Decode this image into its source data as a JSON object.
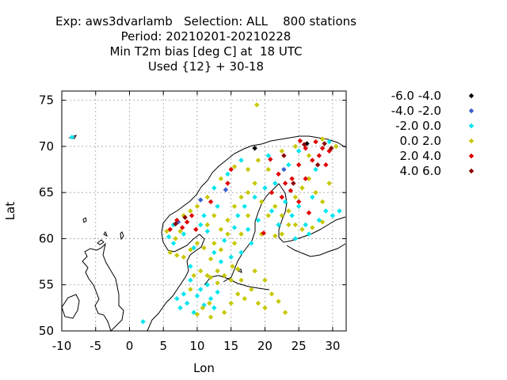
{
  "chart_data": {
    "type": "scatter",
    "title_lines": [
      "Exp: aws3dvarlamb   Selection: ALL    800 stations",
      "Period: 20210201-20210228",
      "Min T2m bias [deg C] at  18 UTC",
      "Used {12} + 30-18"
    ],
    "xlabel": "Lon",
    "ylabel": "Lat",
    "xlim": [
      -10,
      32
    ],
    "ylim": [
      50,
      76
    ],
    "xticks": [
      -10,
      -5,
      0,
      5,
      10,
      15,
      20,
      25,
      30
    ],
    "yticks": [
      50,
      55,
      60,
      65,
      70,
      75
    ],
    "grid": true,
    "legend_position": "right",
    "series": [
      {
        "name": "-6.0 -4.0",
        "color": "#000000",
        "points": [
          [
            18.5,
            69.8
          ],
          [
            26.2,
            70.3
          ]
        ]
      },
      {
        "name": "-4.0 -2.0",
        "color": "#3a5fcd",
        "points": [
          [
            7.2,
            61.8
          ],
          [
            10.5,
            64.2
          ],
          [
            14.2,
            65.3
          ],
          [
            22.8,
            67.5
          ]
        ]
      },
      {
        "name": "-2.0 0.0",
        "color": "#00e5ee",
        "points": [
          [
            -8.5,
            71.0
          ],
          [
            2.0,
            51.0
          ],
          [
            5.8,
            60.2
          ],
          [
            6.5,
            61.5
          ],
          [
            7.0,
            53.5
          ],
          [
            7.5,
            52.5
          ],
          [
            8.0,
            54.0
          ],
          [
            8.5,
            53.0
          ],
          [
            9.0,
            55.5
          ],
          [
            9.5,
            52.0
          ],
          [
            10.0,
            53.8
          ],
          [
            10.5,
            54.5
          ],
          [
            11.0,
            52.8
          ],
          [
            11.5,
            55.0
          ],
          [
            12.0,
            53.5
          ],
          [
            12.5,
            52.5
          ],
          [
            13.0,
            54.2
          ],
          [
            6.5,
            59.5
          ],
          [
            8.0,
            60.5
          ],
          [
            9.5,
            59.0
          ],
          [
            10.5,
            61.5
          ],
          [
            11.5,
            60.8
          ],
          [
            12.5,
            58.5
          ],
          [
            13.5,
            57.5
          ],
          [
            14.0,
            59.8
          ],
          [
            15.0,
            58.0
          ],
          [
            15.5,
            61.2
          ],
          [
            16.0,
            62.5
          ],
          [
            17.0,
            63.5
          ],
          [
            17.5,
            61.0
          ],
          [
            18.0,
            59.5
          ],
          [
            18.5,
            64.5
          ],
          [
            19.0,
            62.0
          ],
          [
            20.0,
            65.5
          ],
          [
            21.0,
            63.0
          ],
          [
            22.0,
            61.5
          ],
          [
            23.0,
            64.0
          ],
          [
            24.0,
            62.5
          ],
          [
            25.0,
            63.5
          ],
          [
            26.0,
            61.5
          ],
          [
            27.0,
            64.5
          ],
          [
            28.0,
            62.0
          ],
          [
            29.0,
            63.0
          ],
          [
            30.0,
            62.5
          ],
          [
            31.0,
            63.0
          ],
          [
            26.5,
            60.5
          ],
          [
            24.5,
            60.0
          ],
          [
            27.5,
            67.5
          ],
          [
            23.5,
            68.0
          ],
          [
            20.5,
            69.0
          ],
          [
            16.5,
            68.5
          ],
          [
            14.5,
            67.0
          ],
          [
            12.5,
            65.5
          ],
          [
            25.0,
            69.5
          ],
          [
            29.5,
            70.5
          ],
          [
            11.0,
            62.5
          ],
          [
            13.0,
            63.5
          ],
          [
            21.5,
            66.0
          ],
          [
            16.5,
            58.5
          ],
          [
            9.0,
            57.0
          ]
        ]
      },
      {
        "name": "0.0 2.0",
        "color": "#c8c800",
        "points": [
          [
            18.8,
            74.5
          ],
          [
            5.5,
            60.8
          ],
          [
            6.0,
            58.5
          ],
          [
            7.0,
            58.2
          ],
          [
            8.0,
            58.0
          ],
          [
            9.0,
            58.8
          ],
          [
            10.0,
            59.5
          ],
          [
            11.0,
            59.0
          ],
          [
            12.0,
            57.8
          ],
          [
            13.0,
            56.5
          ],
          [
            14.0,
            56.0
          ],
          [
            15.0,
            55.5
          ],
          [
            16.0,
            54.0
          ],
          [
            17.0,
            53.5
          ],
          [
            18.0,
            54.5
          ],
          [
            19.0,
            53.0
          ],
          [
            20.0,
            52.5
          ],
          [
            21.0,
            54.0
          ],
          [
            22.0,
            53.2
          ],
          [
            23.0,
            52.0
          ],
          [
            9.5,
            56.0
          ],
          [
            10.5,
            56.5
          ],
          [
            11.5,
            56.0
          ],
          [
            12.0,
            55.8
          ],
          [
            10.0,
            51.8
          ],
          [
            12.0,
            51.5
          ],
          [
            14.0,
            52.0
          ],
          [
            15.0,
            53.0
          ],
          [
            16.5,
            55.5
          ],
          [
            18.5,
            56.5
          ],
          [
            20.0,
            55.5
          ],
          [
            11.5,
            61.5
          ],
          [
            12.5,
            62.5
          ],
          [
            13.5,
            61.0
          ],
          [
            14.5,
            62.0
          ],
          [
            15.5,
            63.5
          ],
          [
            16.5,
            64.5
          ],
          [
            17.5,
            65.0
          ],
          [
            18.5,
            66.0
          ],
          [
            19.5,
            64.0
          ],
          [
            20.5,
            62.5
          ],
          [
            21.5,
            63.5
          ],
          [
            22.5,
            62.5
          ],
          [
            23.5,
            63.0
          ],
          [
            24.5,
            64.5
          ],
          [
            25.5,
            65.5
          ],
          [
            26.5,
            66.5
          ],
          [
            27.5,
            65.0
          ],
          [
            28.5,
            64.0
          ],
          [
            29.5,
            66.0
          ],
          [
            24.5,
            61.5
          ],
          [
            25.5,
            61.0
          ],
          [
            27.0,
            61.2
          ],
          [
            28.5,
            61.8
          ],
          [
            13.5,
            58.8
          ],
          [
            15.5,
            59.5
          ],
          [
            16.5,
            60.5
          ],
          [
            17.5,
            62.5
          ],
          [
            19.5,
            60.5
          ],
          [
            21.5,
            60.3
          ],
          [
            22.5,
            60.5
          ],
          [
            23.5,
            61.5
          ],
          [
            20.5,
            67.5
          ],
          [
            22.5,
            69.5
          ],
          [
            24.5,
            70.0
          ],
          [
            26.5,
            69.0
          ],
          [
            28.5,
            70.8
          ],
          [
            30.5,
            70.0
          ],
          [
            19.0,
            68.5
          ],
          [
            17.5,
            67.5
          ],
          [
            15.5,
            67.8
          ],
          [
            13.5,
            66.5
          ],
          [
            11.5,
            64.5
          ],
          [
            10.0,
            63.5
          ],
          [
            9.0,
            63.0
          ],
          [
            8.0,
            62.5
          ],
          [
            7.5,
            60.8
          ],
          [
            6.8,
            60.0
          ],
          [
            12.5,
            59.5
          ],
          [
            14.5,
            60.5
          ],
          [
            15.2,
            57.0
          ],
          [
            16.0,
            56.7
          ],
          [
            13.0,
            55.2
          ],
          [
            11.8,
            53.0
          ],
          [
            9.0,
            54.5
          ],
          [
            10.8,
            52.5
          ]
        ]
      },
      {
        "name": "2.0 4.0",
        "color": "#e00000",
        "points": [
          [
            6.0,
            61.0
          ],
          [
            7.0,
            62.0
          ],
          [
            7.8,
            61.2
          ],
          [
            8.5,
            61.8
          ],
          [
            9.2,
            62.5
          ],
          [
            9.8,
            61.0
          ],
          [
            12.0,
            64.0
          ],
          [
            14.5,
            66.0
          ],
          [
            15.0,
            67.5
          ],
          [
            20.8,
            68.6
          ],
          [
            22.0,
            67.0
          ],
          [
            23.0,
            66.0
          ],
          [
            24.0,
            66.5
          ],
          [
            25.0,
            68.0
          ],
          [
            26.0,
            66.5
          ],
          [
            27.0,
            68.5
          ],
          [
            28.0,
            69.0
          ],
          [
            29.0,
            68.0
          ],
          [
            22.5,
            64.5
          ],
          [
            25.0,
            64.0
          ],
          [
            26.5,
            62.8
          ],
          [
            28.5,
            69.8
          ],
          [
            27.5,
            70.5
          ],
          [
            19.8,
            60.6
          ],
          [
            21.0,
            65.0
          ],
          [
            23.8,
            65.2
          ],
          [
            26.0,
            69.8
          ],
          [
            25.2,
            70.6
          ],
          [
            29.5,
            69.5
          ]
        ]
      },
      {
        "name": "4.0 6.0",
        "color": "#8b0000",
        "points": [
          [
            6.8,
            61.6
          ],
          [
            8.2,
            62.3
          ],
          [
            25.8,
            70.2
          ],
          [
            28.8,
            70.3
          ],
          [
            22.8,
            69.0
          ],
          [
            24.2,
            66.0
          ],
          [
            27.8,
            68.0
          ],
          [
            29.8,
            69.8
          ]
        ]
      }
    ]
  }
}
